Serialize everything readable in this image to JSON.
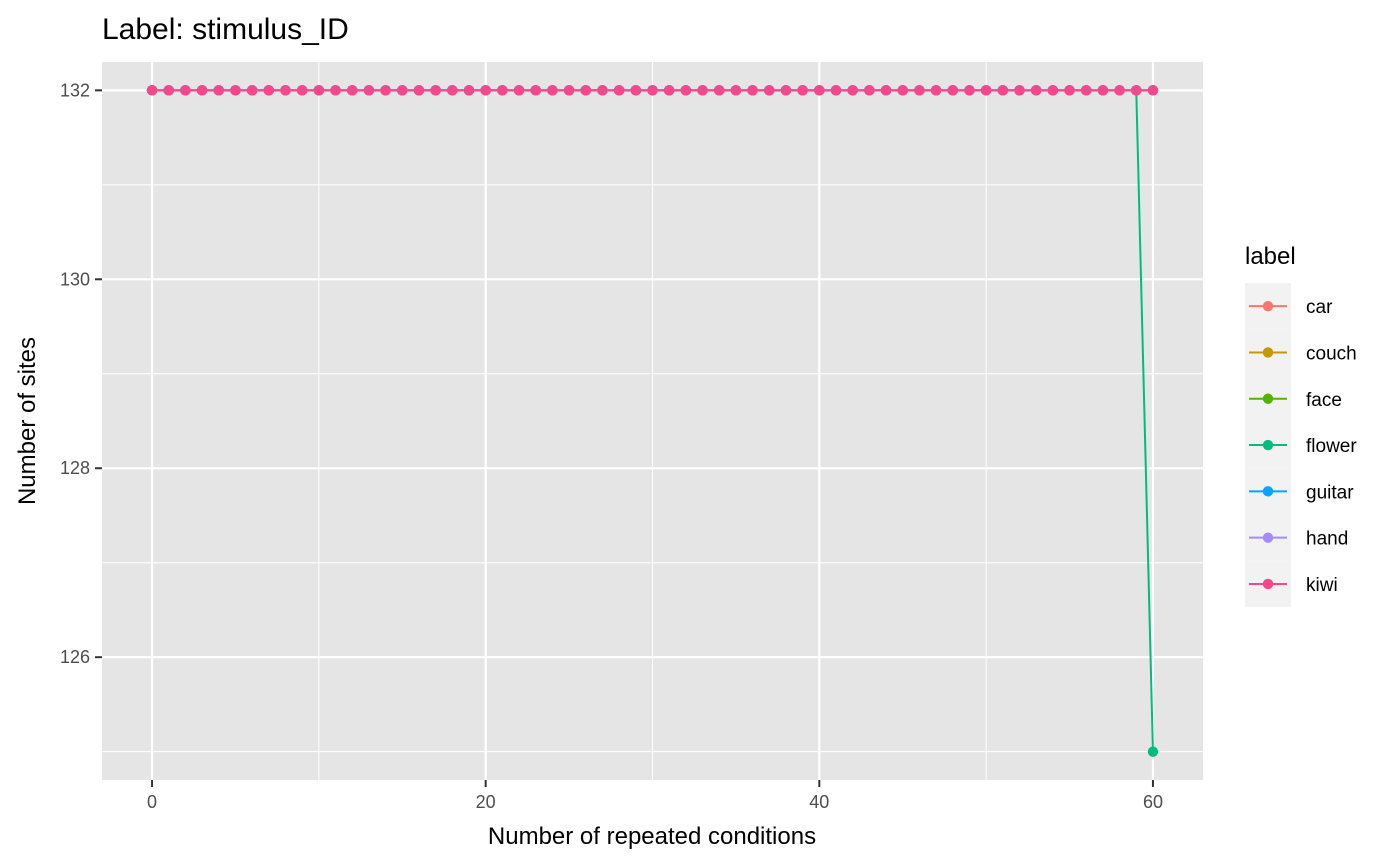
{
  "chart_data": {
    "type": "line",
    "title": "Label: stimulus_ID",
    "xlabel": "Number of repeated conditions",
    "ylabel": "Number of sites",
    "xlim": [
      -3,
      63
    ],
    "ylim": [
      124.7,
      132.3
    ],
    "x_ticks": [
      0,
      20,
      40,
      60
    ],
    "y_ticks": [
      126,
      128,
      130,
      132
    ],
    "x_tick_labels": [
      "0",
      "20",
      "40",
      "60"
    ],
    "y_tick_labels": [
      "126",
      "128",
      "130",
      "132"
    ],
    "grid": true,
    "legend": {
      "title": "label",
      "position": "right"
    },
    "x": [
      0,
      1,
      2,
      3,
      4,
      5,
      6,
      7,
      8,
      9,
      10,
      11,
      12,
      13,
      14,
      15,
      16,
      17,
      18,
      19,
      20,
      21,
      22,
      23,
      24,
      25,
      26,
      27,
      28,
      29,
      30,
      31,
      32,
      33,
      34,
      35,
      36,
      37,
      38,
      39,
      40,
      41,
      42,
      43,
      44,
      45,
      46,
      47,
      48,
      49,
      50,
      51,
      52,
      53,
      54,
      55,
      56,
      57,
      58,
      59,
      60
    ],
    "series": [
      {
        "name": "car",
        "color": "#F8766D",
        "values": [
          132,
          132,
          132,
          132,
          132,
          132,
          132,
          132,
          132,
          132,
          132,
          132,
          132,
          132,
          132,
          132,
          132,
          132,
          132,
          132,
          132,
          132,
          132,
          132,
          132,
          132,
          132,
          132,
          132,
          132,
          132,
          132,
          132,
          132,
          132,
          132,
          132,
          132,
          132,
          132,
          132,
          132,
          132,
          132,
          132,
          132,
          132,
          132,
          132,
          132,
          132,
          132,
          132,
          132,
          132,
          132,
          132,
          132,
          132,
          132,
          132
        ]
      },
      {
        "name": "couch",
        "color": "#C49A00",
        "values": [
          132,
          132,
          132,
          132,
          132,
          132,
          132,
          132,
          132,
          132,
          132,
          132,
          132,
          132,
          132,
          132,
          132,
          132,
          132,
          132,
          132,
          132,
          132,
          132,
          132,
          132,
          132,
          132,
          132,
          132,
          132,
          132,
          132,
          132,
          132,
          132,
          132,
          132,
          132,
          132,
          132,
          132,
          132,
          132,
          132,
          132,
          132,
          132,
          132,
          132,
          132,
          132,
          132,
          132,
          132,
          132,
          132,
          132,
          132,
          132,
          132
        ]
      },
      {
        "name": "face",
        "color": "#53B400",
        "values": [
          132,
          132,
          132,
          132,
          132,
          132,
          132,
          132,
          132,
          132,
          132,
          132,
          132,
          132,
          132,
          132,
          132,
          132,
          132,
          132,
          132,
          132,
          132,
          132,
          132,
          132,
          132,
          132,
          132,
          132,
          132,
          132,
          132,
          132,
          132,
          132,
          132,
          132,
          132,
          132,
          132,
          132,
          132,
          132,
          132,
          132,
          132,
          132,
          132,
          132,
          132,
          132,
          132,
          132,
          132,
          132,
          132,
          132,
          132,
          132,
          132
        ]
      },
      {
        "name": "flower",
        "color": "#00BC7E",
        "values": [
          132,
          132,
          132,
          132,
          132,
          132,
          132,
          132,
          132,
          132,
          132,
          132,
          132,
          132,
          132,
          132,
          132,
          132,
          132,
          132,
          132,
          132,
          132,
          132,
          132,
          132,
          132,
          132,
          132,
          132,
          132,
          132,
          132,
          132,
          132,
          132,
          132,
          132,
          132,
          132,
          132,
          132,
          132,
          132,
          132,
          132,
          132,
          132,
          132,
          132,
          132,
          132,
          132,
          132,
          132,
          132,
          132,
          132,
          132,
          132,
          125
        ]
      },
      {
        "name": "guitar",
        "color": "#00A6FF",
        "values": [
          132,
          132,
          132,
          132,
          132,
          132,
          132,
          132,
          132,
          132,
          132,
          132,
          132,
          132,
          132,
          132,
          132,
          132,
          132,
          132,
          132,
          132,
          132,
          132,
          132,
          132,
          132,
          132,
          132,
          132,
          132,
          132,
          132,
          132,
          132,
          132,
          132,
          132,
          132,
          132,
          132,
          132,
          132,
          132,
          132,
          132,
          132,
          132,
          132,
          132,
          132,
          132,
          132,
          132,
          132,
          132,
          132,
          132,
          132,
          132,
          132
        ]
      },
      {
        "name": "hand",
        "color": "#A58AFF",
        "values": [
          132,
          132,
          132,
          132,
          132,
          132,
          132,
          132,
          132,
          132,
          132,
          132,
          132,
          132,
          132,
          132,
          132,
          132,
          132,
          132,
          132,
          132,
          132,
          132,
          132,
          132,
          132,
          132,
          132,
          132,
          132,
          132,
          132,
          132,
          132,
          132,
          132,
          132,
          132,
          132,
          132,
          132,
          132,
          132,
          132,
          132,
          132,
          132,
          132,
          132,
          132,
          132,
          132,
          132,
          132,
          132,
          132,
          132,
          132,
          132,
          132
        ]
      },
      {
        "name": "kiwi",
        "color": "#F8458B",
        "values": [
          132,
          132,
          132,
          132,
          132,
          132,
          132,
          132,
          132,
          132,
          132,
          132,
          132,
          132,
          132,
          132,
          132,
          132,
          132,
          132,
          132,
          132,
          132,
          132,
          132,
          132,
          132,
          132,
          132,
          132,
          132,
          132,
          132,
          132,
          132,
          132,
          132,
          132,
          132,
          132,
          132,
          132,
          132,
          132,
          132,
          132,
          132,
          132,
          132,
          132,
          132,
          132,
          132,
          132,
          132,
          132,
          132,
          132,
          132,
          132,
          132
        ]
      }
    ]
  },
  "colors": {
    "panel_bg": "#E5E5E5",
    "grid": "#FFFFFF",
    "legend_key_bg": "#F2F2F2"
  }
}
